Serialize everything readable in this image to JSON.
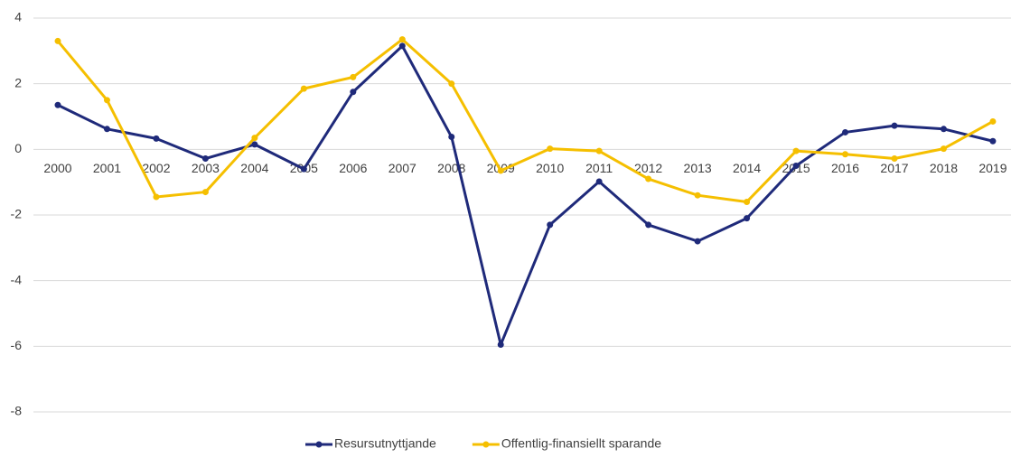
{
  "chart_data": {
    "type": "line",
    "categories": [
      "2000",
      "2001",
      "2002",
      "2003",
      "2004",
      "2005",
      "2006",
      "2007",
      "2008",
      "2009",
      "2010",
      "2011",
      "2012",
      "2013",
      "2014",
      "2015",
      "2016",
      "2017",
      "2018",
      "2019"
    ],
    "series": [
      {
        "name": "Resursutnyttjande",
        "color": "#1f2a7a",
        "values": [
          1.35,
          0.62,
          0.33,
          -0.28,
          0.15,
          -0.6,
          1.75,
          3.15,
          0.38,
          -5.95,
          -2.3,
          -0.98,
          -2.3,
          -2.8,
          -2.1,
          -0.5,
          0.52,
          0.72,
          0.62,
          0.25
        ]
      },
      {
        "name": "Offentlig-finansiellt sparande",
        "color": "#f5bf00",
        "values": [
          3.3,
          1.5,
          -1.45,
          -1.3,
          0.35,
          1.85,
          2.2,
          3.35,
          2.0,
          -0.65,
          0.02,
          -0.05,
          -0.9,
          -1.4,
          -1.6,
          -0.05,
          -0.15,
          -0.28,
          0.02,
          0.85
        ]
      }
    ],
    "ylim": [
      -8,
      4
    ],
    "yticks": [
      -8,
      -6,
      -4,
      -2,
      0,
      2,
      4
    ],
    "grid": true,
    "legend": "bottom"
  }
}
